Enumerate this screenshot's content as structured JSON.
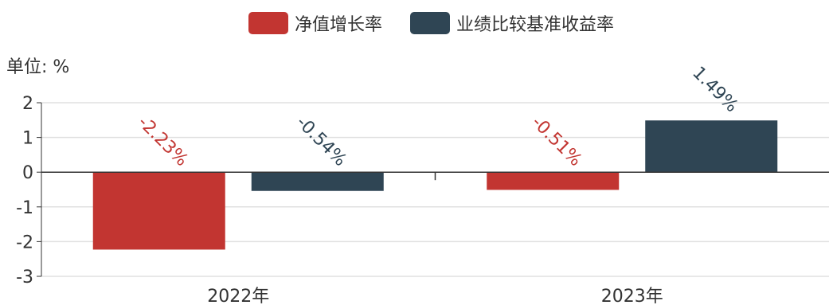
{
  "chart_data": {
    "type": "bar",
    "unit_label": "单位: %",
    "categories": [
      "2022年",
      "2023年"
    ],
    "series": [
      {
        "name": "净值增长率",
        "color": "#c23531",
        "values": [
          -2.23,
          -0.51
        ],
        "labels": [
          "-2.23%",
          "-0.51%"
        ]
      },
      {
        "name": "业绩比较基准收益率",
        "color": "#2f4554",
        "values": [
          -0.54,
          1.49
        ],
        "labels": [
          "-0.54%",
          "1.49%"
        ]
      }
    ],
    "ylim": [
      -3,
      2
    ],
    "yticks": [
      2,
      1,
      0,
      -1,
      -2,
      -3
    ],
    "ytick_labels": [
      "2",
      "1",
      "0",
      "-1",
      "-2",
      "-3"
    ],
    "grid": true,
    "legend_position": "top-center"
  }
}
